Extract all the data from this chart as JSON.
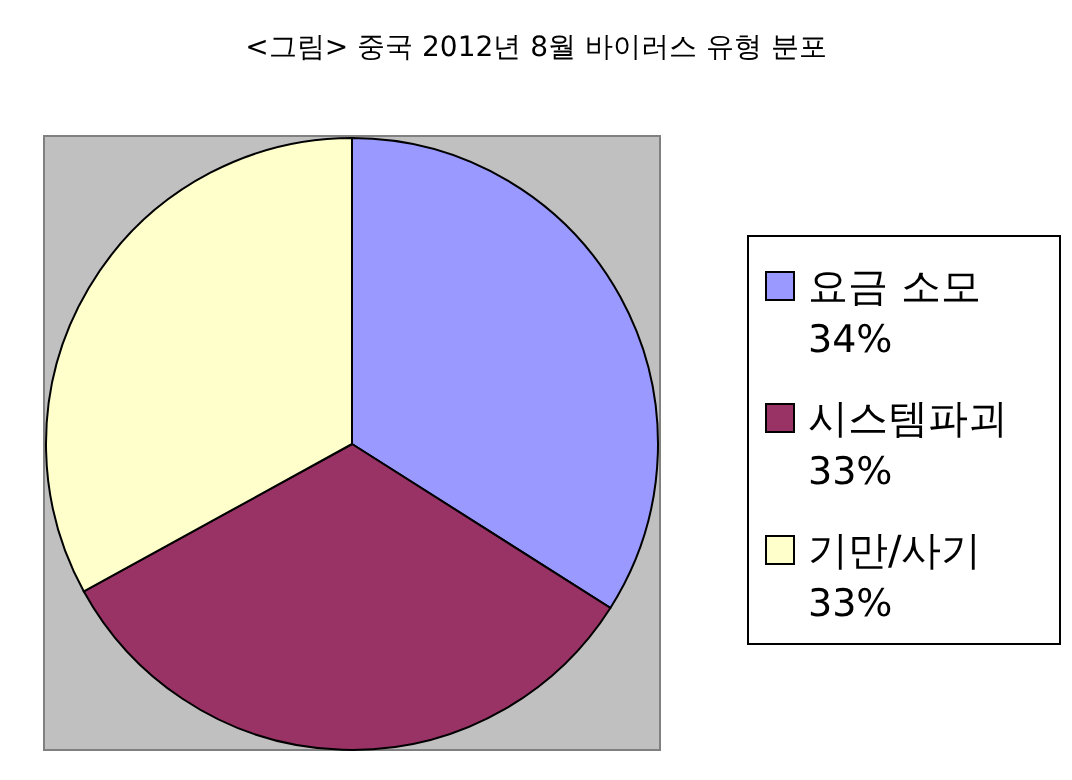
{
  "chart_data": {
    "type": "pie",
    "title": "<그림> 중국 2012년 8월 바이러스 유형 분포",
    "categories": [
      "요금 소모",
      "시스템파괴",
      "기만/사기"
    ],
    "values": [
      34,
      33,
      33
    ],
    "colors": [
      "#9999ff",
      "#993366",
      "#ffffcc"
    ],
    "value_labels": [
      "34%",
      "33%",
      "33%"
    ],
    "legend": "right"
  }
}
